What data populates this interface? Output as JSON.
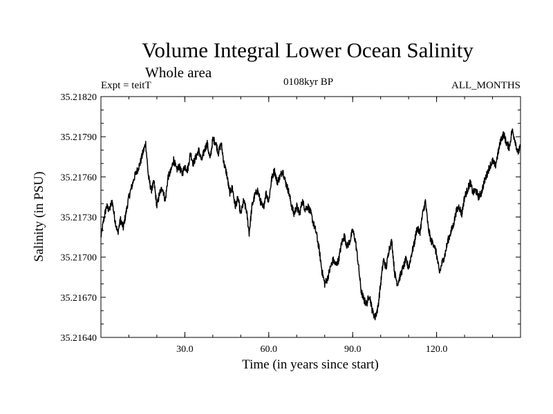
{
  "chart_data": {
    "type": "line",
    "title": "Volume Integral Lower Ocean Salinity",
    "subtitle": "Whole area",
    "annotations": {
      "left": "Expt = teitT",
      "center": "0108kyr BP",
      "right": "ALL_MONTHS"
    },
    "xlabel": "Time (in years since start)",
    "ylabel": "Salinity (in PSU)",
    "xlim": [
      0,
      150
    ],
    "ylim": [
      35.2164,
      35.2182
    ],
    "xticks": [
      30,
      60,
      90,
      120
    ],
    "xtick_labels": [
      "30.0",
      "60.0",
      "90.0",
      "120.0"
    ],
    "yticks": [
      35.2164,
      35.2167,
      35.217,
      35.2173,
      35.2176,
      35.2179,
      35.2182
    ],
    "ytick_labels": [
      "35.21640",
      "35.21670",
      "35.21700",
      "35.21730",
      "35.21760",
      "35.21790",
      "35.21820"
    ],
    "grid": false,
    "series": [
      {
        "name": "salinity",
        "color": "#000000",
        "x": [
          0,
          1,
          2,
          3,
          4,
          5,
          6,
          7,
          8,
          10,
          12,
          14,
          15,
          16,
          17,
          18,
          19,
          20,
          21,
          22,
          23,
          24,
          25,
          26,
          27,
          28,
          29,
          30,
          31,
          32,
          33,
          34,
          35,
          36,
          37,
          38,
          39,
          40,
          41,
          42,
          43,
          44,
          45,
          46,
          47,
          48,
          49,
          50,
          51,
          52,
          53,
          54,
          55,
          56,
          57,
          58,
          59,
          60,
          61,
          62,
          63,
          64,
          65,
          66,
          67,
          68,
          69,
          70,
          71,
          72,
          73,
          74,
          75,
          76,
          77,
          78,
          79,
          80,
          81,
          82,
          83,
          84,
          85,
          86,
          87,
          88,
          89,
          90,
          91,
          92,
          93,
          94,
          95,
          96,
          97,
          98,
          99,
          100,
          101,
          102,
          103,
          104,
          105,
          106,
          107,
          108,
          109,
          110,
          111,
          112,
          113,
          114,
          115,
          116,
          117,
          118,
          119,
          120,
          121,
          122,
          123,
          124,
          125,
          126,
          127,
          128,
          129,
          130,
          131,
          132,
          133,
          134,
          135,
          136,
          137,
          138,
          139,
          140,
          141,
          142,
          143,
          144,
          145,
          146,
          147,
          148,
          149,
          150
        ],
        "values": [
          35.21715,
          35.21728,
          35.21738,
          35.21735,
          35.21742,
          35.21728,
          35.21718,
          35.21728,
          35.21722,
          35.21745,
          35.2176,
          35.2177,
          35.21778,
          35.21785,
          35.2176,
          35.2175,
          35.21756,
          35.21738,
          35.21748,
          35.21752,
          35.21742,
          35.2176,
          35.21764,
          35.21773,
          35.21765,
          35.21768,
          35.21762,
          35.21768,
          35.21765,
          35.21778,
          35.2177,
          35.21775,
          35.2178,
          35.21772,
          35.2178,
          35.21785,
          35.21773,
          35.21788,
          35.21786,
          35.21778,
          35.21785,
          35.2177,
          35.21762,
          35.21748,
          35.21752,
          35.21738,
          35.21744,
          35.21732,
          35.21742,
          35.21735,
          35.21718,
          35.21738,
          35.21746,
          35.2175,
          35.21742,
          35.21736,
          35.21748,
          35.21742,
          35.21758,
          35.21765,
          35.21756,
          35.2176,
          35.21765,
          35.21756,
          35.2175,
          35.2174,
          35.21732,
          35.21738,
          35.21732,
          35.21742,
          35.21736,
          35.21738,
          35.21733,
          35.21725,
          35.21718,
          35.21706,
          35.2169,
          35.2168,
          35.21684,
          35.21692,
          35.21698,
          35.21694,
          35.21698,
          35.2171,
          35.21716,
          35.21708,
          35.21712,
          35.2172,
          35.21712,
          35.21695,
          35.21675,
          35.21668,
          35.21665,
          35.21672,
          35.2166,
          35.21655,
          35.21662,
          35.2168,
          35.21698,
          35.21692,
          35.21706,
          35.21712,
          35.21688,
          35.2168,
          35.21686,
          35.21692,
          35.21698,
          35.21692,
          35.21702,
          35.2171,
          35.21722,
          35.21718,
          35.21732,
          35.21742,
          35.21722,
          35.21712,
          35.2171,
          35.21702,
          35.21688,
          35.21696,
          35.21702,
          35.21712,
          35.21718,
          35.21724,
          35.21734,
          35.21738,
          35.21732,
          35.21745,
          35.2175,
          35.21756,
          35.21748,
          35.2175,
          35.21745,
          35.21748,
          35.21756,
          35.21762,
          35.21768,
          35.21772,
          35.21768,
          35.21778,
          35.21788,
          35.21792,
          35.21785,
          35.21782,
          35.21795,
          35.21788,
          35.21778,
          35.21782
        ]
      }
    ]
  }
}
